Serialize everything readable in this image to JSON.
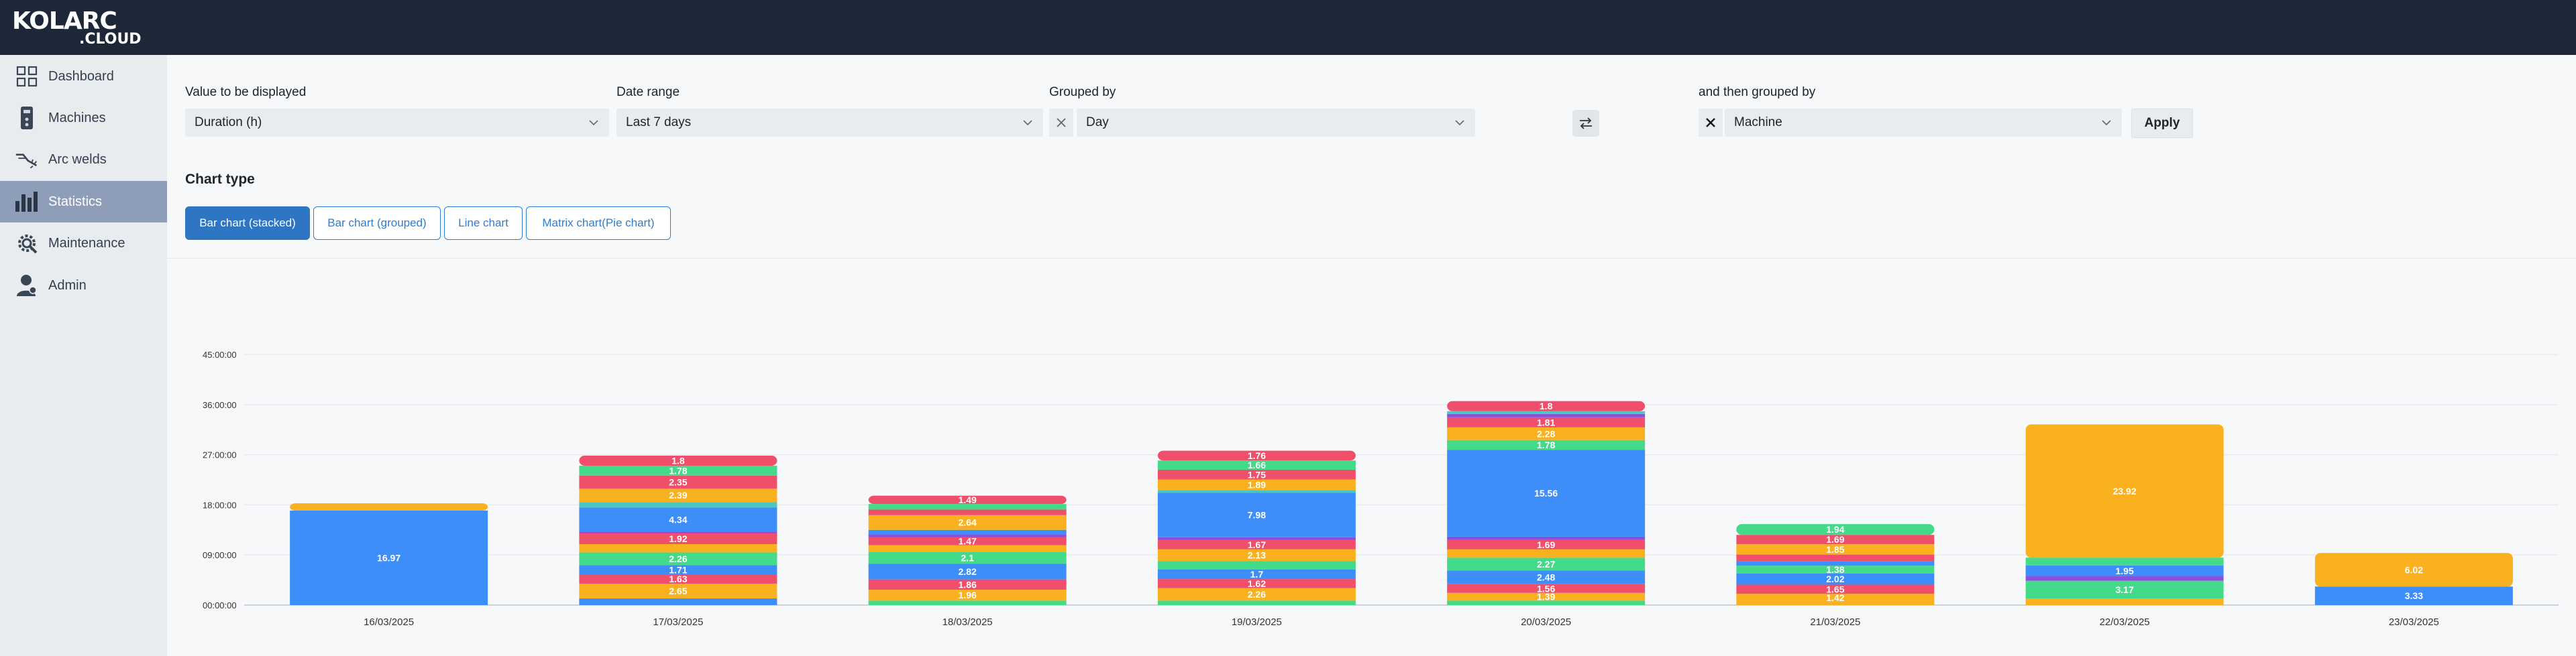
{
  "brand": {
    "logo_top": "KOLARC",
    "logo_bottom": ".CLOUD"
  },
  "nav": [
    {
      "label": "Dashboard",
      "icon": "dashboard-icon"
    },
    {
      "label": "Machines",
      "icon": "machine-icon"
    },
    {
      "label": "Arc welds",
      "icon": "arc-weld-icon"
    },
    {
      "label": "Statistics",
      "icon": "bar-chart-icon",
      "active": true
    },
    {
      "label": "Maintenance",
      "icon": "gear-wrench-icon"
    },
    {
      "label": "Admin",
      "icon": "user-icon"
    }
  ],
  "filters": {
    "value_label": "Value to be displayed",
    "value_selected": "Duration (h)",
    "date_label": "Date range",
    "date_selected": "Last 7 days",
    "group_label": "Grouped by",
    "group_selected": "Day",
    "then_label": "and then grouped by",
    "then_selected": "Machine",
    "apply_label": "Apply"
  },
  "chart_type": {
    "title": "Chart type",
    "options": [
      "Bar chart (stacked)",
      "Bar chart (grouped)",
      "Line chart",
      "Matrix chart(Pie chart)"
    ],
    "selected": "Bar chart (stacked)"
  },
  "colors": {
    "blue": "#3d8ef8",
    "orange": "#f9b11f",
    "pink": "#f04f6c",
    "green": "#43db8a",
    "purple": "#8a4fdc",
    "teal": "#4bc7c0",
    "active_button": "#2e75c4",
    "topbar": "#1d2738"
  },
  "chart_data": {
    "type": "bar",
    "stacked": true,
    "y_unit": "duration (hh:mm:ss)",
    "ylim": [
      0,
      45
    ],
    "y_ticks": [
      "00:00:00",
      "09:00:00",
      "18:00:00",
      "27:00:00",
      "36:00:00",
      "45:00:00"
    ],
    "grid": true,
    "categories": [
      "16/03/2025",
      "17/03/2025",
      "18/03/2025",
      "19/03/2025",
      "20/03/2025",
      "21/03/2025",
      "22/03/2025",
      "23/03/2025"
    ],
    "stacks": [
      [
        {
          "v": 16.97,
          "c": "blue",
          "l": "16.97"
        },
        {
          "v": 1.3,
          "c": "orange",
          "l": ""
        }
      ],
      [
        {
          "v": 1.2,
          "c": "blue",
          "l": ""
        },
        {
          "v": 2.65,
          "c": "orange",
          "l": "2.65"
        },
        {
          "v": 1.63,
          "c": "pink",
          "l": "1.63"
        },
        {
          "v": 1.71,
          "c": "blue",
          "l": "1.71"
        },
        {
          "v": 2.26,
          "c": "green",
          "l": "2.26"
        },
        {
          "v": 1.5,
          "c": "orange",
          "l": ""
        },
        {
          "v": 1.92,
          "c": "pink",
          "l": "1.92"
        },
        {
          "v": 0.3,
          "c": "purple",
          "l": ""
        },
        {
          "v": 4.34,
          "c": "blue",
          "l": "4.34"
        },
        {
          "v": 1.0,
          "c": "teal",
          "l": ""
        },
        {
          "v": 2.39,
          "c": "orange",
          "l": "2.39"
        },
        {
          "v": 2.35,
          "c": "pink",
          "l": "2.35"
        },
        {
          "v": 1.78,
          "c": "green",
          "l": "1.78"
        },
        {
          "v": 1.8,
          "c": "pink",
          "l": "1.8"
        }
      ],
      [
        {
          "v": 0.8,
          "c": "green",
          "l": ""
        },
        {
          "v": 1.96,
          "c": "orange",
          "l": "1.96"
        },
        {
          "v": 1.86,
          "c": "pink",
          "l": "1.86"
        },
        {
          "v": 2.82,
          "c": "blue",
          "l": "2.82"
        },
        {
          "v": 2.1,
          "c": "green",
          "l": "2.1"
        },
        {
          "v": 1.2,
          "c": "orange",
          "l": ""
        },
        {
          "v": 1.47,
          "c": "pink",
          "l": "1.47"
        },
        {
          "v": 0.5,
          "c": "purple",
          "l": ""
        },
        {
          "v": 0.8,
          "c": "blue",
          "l": ""
        },
        {
          "v": 2.64,
          "c": "orange",
          "l": "2.64"
        },
        {
          "v": 1.0,
          "c": "pink",
          "l": ""
        },
        {
          "v": 1.0,
          "c": "green",
          "l": ""
        },
        {
          "v": 1.49,
          "c": "pink",
          "l": "1.49"
        }
      ],
      [
        {
          "v": 0.8,
          "c": "green",
          "l": ""
        },
        {
          "v": 2.26,
          "c": "orange",
          "l": "2.26"
        },
        {
          "v": 1.62,
          "c": "pink",
          "l": "1.62"
        },
        {
          "v": 1.7,
          "c": "blue",
          "l": "1.7"
        },
        {
          "v": 1.5,
          "c": "green",
          "l": ""
        },
        {
          "v": 2.13,
          "c": "orange",
          "l": "2.13"
        },
        {
          "v": 1.67,
          "c": "pink",
          "l": "1.67"
        },
        {
          "v": 0.5,
          "c": "purple",
          "l": ""
        },
        {
          "v": 7.98,
          "c": "blue",
          "l": "7.98"
        },
        {
          "v": 0.5,
          "c": "teal",
          "l": ""
        },
        {
          "v": 1.89,
          "c": "orange",
          "l": "1.89"
        },
        {
          "v": 1.75,
          "c": "pink",
          "l": "1.75"
        },
        {
          "v": 1.66,
          "c": "green",
          "l": "1.66"
        },
        {
          "v": 1.76,
          "c": "pink",
          "l": "1.76"
        }
      ],
      [
        {
          "v": 0.8,
          "c": "green",
          "l": ""
        },
        {
          "v": 1.39,
          "c": "orange",
          "l": "1.39"
        },
        {
          "v": 1.56,
          "c": "pink",
          "l": "1.56"
        },
        {
          "v": 2.48,
          "c": "blue",
          "l": "2.48"
        },
        {
          "v": 2.27,
          "c": "green",
          "l": "2.27"
        },
        {
          "v": 1.5,
          "c": "orange",
          "l": ""
        },
        {
          "v": 1.69,
          "c": "pink",
          "l": "1.69"
        },
        {
          "v": 0.6,
          "c": "purple",
          "l": ""
        },
        {
          "v": 15.56,
          "c": "blue",
          "l": "15.56"
        },
        {
          "v": 1.78,
          "c": "green",
          "l": "1.78"
        },
        {
          "v": 2.28,
          "c": "orange",
          "l": "2.28"
        },
        {
          "v": 1.81,
          "c": "pink",
          "l": "1.81"
        },
        {
          "v": 0.6,
          "c": "purple",
          "l": ""
        },
        {
          "v": 0.5,
          "c": "teal",
          "l": ""
        },
        {
          "v": 1.8,
          "c": "pink",
          "l": "1.8"
        }
      ],
      [
        {
          "v": 0.6,
          "c": "orange",
          "l": ""
        },
        {
          "v": 1.42,
          "c": "orange",
          "l": "1.42"
        },
        {
          "v": 1.65,
          "c": "pink",
          "l": "1.65"
        },
        {
          "v": 2.02,
          "c": "blue",
          "l": "2.02"
        },
        {
          "v": 1.38,
          "c": "green",
          "l": "1.38"
        },
        {
          "v": 0.8,
          "c": "blue",
          "l": ""
        },
        {
          "v": 1.2,
          "c": "pink",
          "l": ""
        },
        {
          "v": 1.85,
          "c": "orange",
          "l": "1.85"
        },
        {
          "v": 1.69,
          "c": "pink",
          "l": "1.69"
        },
        {
          "v": 1.94,
          "c": "green",
          "l": "1.94"
        }
      ],
      [
        {
          "v": 1.2,
          "c": "orange",
          "l": ""
        },
        {
          "v": 3.17,
          "c": "green",
          "l": "3.17"
        },
        {
          "v": 0.8,
          "c": "purple",
          "l": ""
        },
        {
          "v": 1.95,
          "c": "blue",
          "l": "1.95"
        },
        {
          "v": 1.4,
          "c": "green",
          "l": ""
        },
        {
          "v": 23.92,
          "c": "orange",
          "l": "23.92"
        }
      ],
      [
        {
          "v": 3.33,
          "c": "blue",
          "l": "3.33"
        },
        {
          "v": 6.02,
          "c": "orange",
          "l": "6.02"
        }
      ]
    ]
  }
}
